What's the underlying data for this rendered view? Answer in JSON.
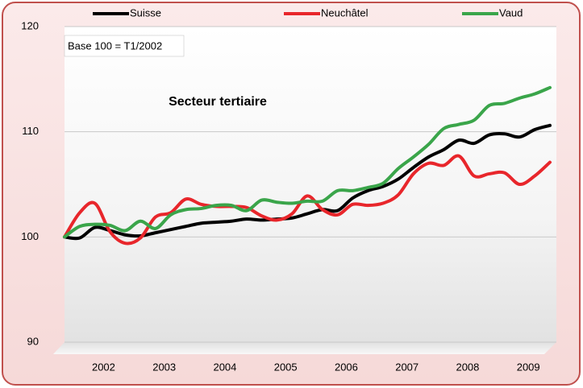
{
  "chart_data": {
    "type": "line",
    "title": "Secteur tertiaire",
    "annotation": "Base 100 = T1/2002",
    "categories": [
      null,
      null,
      null,
      "2002",
      null,
      null,
      null,
      "2003",
      null,
      null,
      null,
      "2004",
      null,
      null,
      null,
      "2005",
      null,
      null,
      null,
      "2006",
      null,
      null,
      null,
      "2007",
      null,
      null,
      null,
      "2008",
      null,
      null,
      null,
      "2009",
      null
    ],
    "series": [
      {
        "name": "Suisse",
        "color": "#000000",
        "values": [
          100,
          99.9,
          100.9,
          100.6,
          100.2,
          100.1,
          100.4,
          100.7,
          101.0,
          101.3,
          101.4,
          101.5,
          101.7,
          101.6,
          101.7,
          101.8,
          102.2,
          102.6,
          102.5,
          103.7,
          104.4,
          104.8,
          105.5,
          106.6,
          107.6,
          108.3,
          109.2,
          108.9,
          109.7,
          109.8,
          109.5,
          110.2,
          110.6
        ]
      },
      {
        "name": "Neuchâtel",
        "color": "#e8262b",
        "values": [
          100,
          102.3,
          103.2,
          100.5,
          99.4,
          99.9,
          101.9,
          102.3,
          103.6,
          103.1,
          102.9,
          102.9,
          102.8,
          102.0,
          101.6,
          102.2,
          103.9,
          102.6,
          102.1,
          103.1,
          103.0,
          103.2,
          104.0,
          106.0,
          107.0,
          106.8,
          107.7,
          105.8,
          106.0,
          106.1,
          105.0,
          105.8,
          107.1
        ]
      },
      {
        "name": "Vaud",
        "color": "#3aa54a",
        "values": [
          100,
          101.0,
          101.2,
          101.1,
          100.6,
          101.5,
          100.8,
          102.1,
          102.6,
          102.7,
          103.0,
          103.0,
          102.5,
          103.5,
          103.3,
          103.2,
          103.4,
          103.4,
          104.4,
          104.4,
          104.7,
          105.1,
          106.5,
          107.6,
          108.8,
          110.3,
          110.7,
          111.1,
          112.5,
          112.7,
          113.2,
          113.6,
          114.2
        ]
      }
    ],
    "ylim": [
      90,
      120
    ],
    "yticks": [
      90,
      100,
      110,
      120
    ],
    "grid": true,
    "legend": "top"
  }
}
